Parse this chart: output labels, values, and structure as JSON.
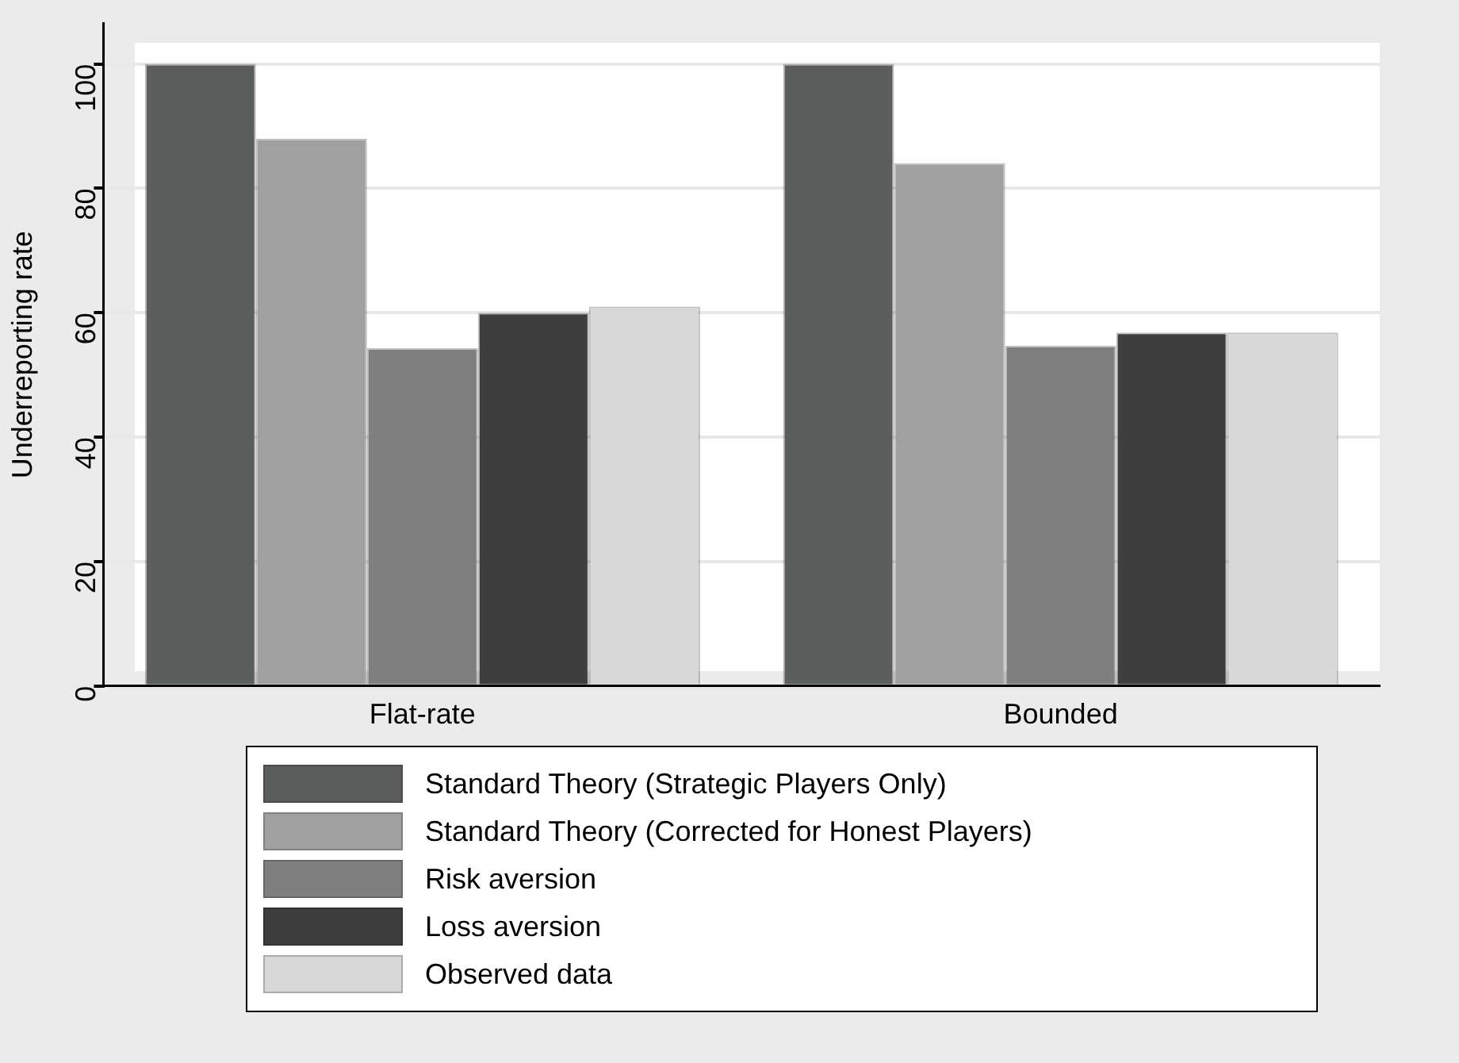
{
  "chart_data": {
    "type": "bar",
    "ylabel": "Underreporting rate",
    "categories": [
      "Flat-rate",
      "Bounded"
    ],
    "series": [
      {
        "name": "Standard Theory (Strategic Players Only)",
        "color": "#5c5e5d",
        "values": [
          100,
          100
        ]
      },
      {
        "name": "Standard Theory (Corrected for Honest Players)",
        "color": "#9fa09f",
        "values": [
          88,
          84
        ]
      },
      {
        "name": "Risk aversion",
        "color": "#7f7f7f",
        "values": [
          54.3,
          54.7
        ]
      },
      {
        "name": "Loss aversion",
        "color": "#3e3e3e",
        "values": [
          60,
          56.8
        ]
      },
      {
        "name": "Observed data",
        "color": "#d8d8d8",
        "values": [
          61,
          56.8
        ]
      }
    ],
    "ylim": [
      0,
      106.5
    ],
    "yticks": [
      0,
      20,
      40,
      60,
      80,
      100
    ],
    "grid": "y",
    "legend": "bottom"
  }
}
